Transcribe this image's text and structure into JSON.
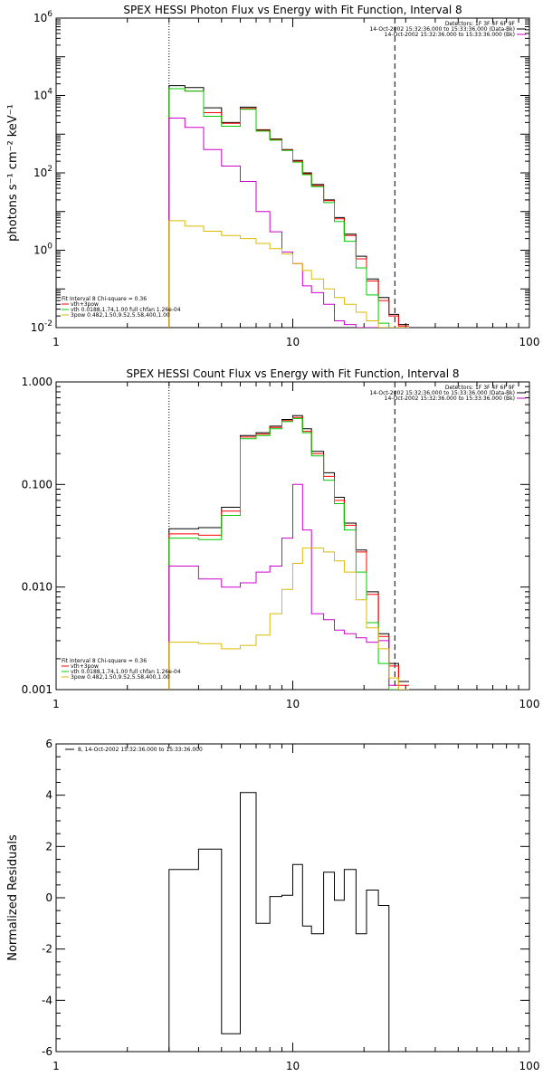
{
  "chart_data": [
    {
      "type": "line",
      "step": true,
      "title": "SPEX HESSI Photon Flux vs Energy with Fit Function, Interval 8",
      "xlabel": "",
      "ylabel": "photons s⁻¹ cm⁻² keV⁻¹",
      "xscale": "log",
      "yscale": "log",
      "xlim": [
        1,
        100
      ],
      "ylim": [
        0.01,
        1000000
      ],
      "x_ticks": [
        "1",
        "10",
        "100"
      ],
      "y_ticks": [
        {
          "v": 1000000,
          "t": "10",
          "e": "6"
        },
        {
          "v": 10000,
          "t": "10",
          "e": "4"
        },
        {
          "v": 100,
          "t": "10",
          "e": "2"
        },
        {
          "v": 1,
          "t": "10",
          "e": "0"
        },
        {
          "v": 0.01,
          "t": "10",
          "e": "-2"
        }
      ],
      "vlines": [
        {
          "x": 3.0,
          "style": "dotted"
        },
        {
          "x": 27.0,
          "style": "dashed"
        }
      ],
      "legend_top": [
        {
          "text": "Detectors: 1F 3F 4F 6F 9F",
          "color": ""
        },
        {
          "text": "14-Oct-2002 15:32:36.000 to 15:33:36.000 (Data-Bk)",
          "color": "#000000"
        },
        {
          "text": "14-Oct-2002 15:32:36.000 to 15:33:36.000 (Bk)",
          "color": "#cc00cc"
        }
      ],
      "legend_bottom": [
        {
          "text": "Fit Interval 8    Chi-square = 0.36",
          "color": ""
        },
        {
          "text": "vth+3pow",
          "color": "#ff0000"
        },
        {
          "text": "vth 0.0188,1.74,1.00  full chfan 1.26e-04",
          "color": "#00cc00"
        },
        {
          "text": "3pow 0.482,1.50,9.52,5.58,400,1.00",
          "color": "#ddbb00"
        }
      ],
      "edges": [
        3.0,
        3.5,
        4.2,
        5.0,
        6.0,
        7.0,
        8.0,
        9.0,
        10.0,
        11.0,
        12.0,
        13.5,
        15.0,
        16.5,
        18.5,
        20.5,
        23.0,
        25.5,
        28.0,
        31.0
      ],
      "series": [
        {
          "name": "",
          "color": "#000000",
          "values": [
            18000,
            16000,
            4800,
            2000,
            5000,
            1300,
            750,
            400,
            210,
            100,
            50,
            20,
            7,
            2.6,
            0.7,
            0.18,
            0.06,
            0.022,
            0.012
          ]
        },
        {
          "name": "",
          "color": "#ff0000",
          "values": [
            15000,
            13000,
            3600,
            1900,
            4600,
            1250,
            720,
            390,
            200,
            95,
            47,
            19,
            6.5,
            2.4,
            0.6,
            0.16,
            0.05,
            0.02,
            0.011
          ]
        },
        {
          "name": "",
          "color": "#00cc00",
          "values": [
            15000,
            13000,
            2900,
            1600,
            4400,
            1200,
            700,
            380,
            190,
            90,
            44,
            17,
            5.5,
            1.7,
            0.35,
            0.07,
            0.013,
            0.006,
            0.004
          ]
        },
        {
          "name": "",
          "color": "#cc00cc",
          "values": [
            2600,
            1500,
            400,
            150,
            60,
            10,
            3,
            0.9,
            0.45,
            0.12,
            0.08,
            0.04,
            0.015,
            0.012,
            0.01,
            0.009,
            0.008,
            0.007,
            0.006
          ]
        },
        {
          "name": "",
          "color": "#ddbb00",
          "values": [
            5.8,
            4.2,
            3.1,
            2.4,
            2.0,
            1.5,
            1.1,
            0.8,
            0.45,
            0.3,
            0.18,
            0.1,
            0.06,
            0.04,
            0.025,
            0.015,
            0.01,
            0.006,
            0.004
          ]
        }
      ]
    },
    {
      "type": "line",
      "step": true,
      "title": "SPEX HESSI Count Flux vs Energy with Fit Function, Interval 8",
      "xlabel": "",
      "ylabel": "",
      "xscale": "log",
      "yscale": "log",
      "xlim": [
        1,
        100
      ],
      "ylim": [
        0.001,
        1.0
      ],
      "x_ticks": [
        "1",
        "10",
        "100"
      ],
      "y_ticks": [
        {
          "v": 1.0,
          "t": "1.000"
        },
        {
          "v": 0.1,
          "t": "0.100"
        },
        {
          "v": 0.01,
          "t": "0.010"
        },
        {
          "v": 0.001,
          "t": "0.001"
        }
      ],
      "vlines": [
        {
          "x": 3.0,
          "style": "dotted"
        },
        {
          "x": 27.0,
          "style": "dashed"
        }
      ],
      "legend_top": [
        {
          "text": "Detectors: 1F 3F 4F 6F 9F",
          "color": ""
        },
        {
          "text": "14-Oct-2002 15:32:36.000 to 15:33:36.000 (Data-Bk)",
          "color": "#000000"
        },
        {
          "text": "14-Oct-2002 15:32:36.000 to 15:33:36.000 (Bk)",
          "color": "#cc00cc"
        }
      ],
      "legend_bottom": [
        {
          "text": "Fit Interval 8    Chi-square = 0.36",
          "color": ""
        },
        {
          "text": "vth+3pow",
          "color": "#ff0000"
        },
        {
          "text": "vth 0.0188,1.74,1.00  full chfan 1.26e-04",
          "color": "#00cc00"
        },
        {
          "text": "3pow 0.482,1.50,9.52,5.58,400,1.00",
          "color": "#ddbb00"
        }
      ],
      "edges": [
        3.0,
        4.0,
        5.0,
        6.0,
        7.0,
        8.0,
        9.0,
        10.0,
        11.0,
        12.0,
        13.5,
        15.0,
        16.5,
        18.5,
        20.5,
        23.0,
        25.5,
        28.0,
        31.0
      ],
      "series": [
        {
          "name": "",
          "color": "#000000",
          "values": [
            0.037,
            0.038,
            0.06,
            0.3,
            0.32,
            0.37,
            0.43,
            0.47,
            0.35,
            0.21,
            0.13,
            0.075,
            0.042,
            0.023,
            0.009,
            0.0035,
            0.0018,
            0.0012
          ]
        },
        {
          "name": "",
          "color": "#ff0000",
          "values": [
            0.033,
            0.032,
            0.055,
            0.29,
            0.31,
            0.36,
            0.42,
            0.45,
            0.33,
            0.2,
            0.12,
            0.07,
            0.04,
            0.022,
            0.0085,
            0.0033,
            0.0017,
            0.0011
          ]
        },
        {
          "name": "",
          "color": "#00cc00",
          "values": [
            0.03,
            0.029,
            0.05,
            0.28,
            0.3,
            0.35,
            0.41,
            0.44,
            0.32,
            0.19,
            0.11,
            0.065,
            0.036,
            0.014,
            0.0045,
            0.0018,
            0.001,
            0.001
          ]
        },
        {
          "name": "",
          "color": "#cc00cc",
          "values": [
            0.016,
            0.012,
            0.01,
            0.011,
            0.014,
            0.016,
            0.03,
            0.1,
            0.036,
            0.0055,
            0.0048,
            0.0038,
            0.0035,
            0.0032,
            0.0029,
            0.003,
            0.0011,
            0.001
          ]
        },
        {
          "name": "",
          "color": "#ddbb00",
          "values": [
            0.0029,
            0.0028,
            0.0025,
            0.0027,
            0.0034,
            0.0055,
            0.0095,
            0.017,
            0.024,
            0.024,
            0.022,
            0.018,
            0.014,
            0.0075,
            0.004,
            0.0025,
            0.0013,
            0.001
          ]
        }
      ]
    },
    {
      "type": "line",
      "step": true,
      "title": "",
      "xlabel": "",
      "ylabel": "Normalized Residuals",
      "xscale": "log",
      "yscale": "linear",
      "xlim": [
        1,
        100
      ],
      "ylim": [
        -6,
        6
      ],
      "x_ticks": [
        "1",
        "10",
        "100"
      ],
      "y_ticks": [
        {
          "v": 6,
          "t": "6"
        },
        {
          "v": 4,
          "t": "4"
        },
        {
          "v": 2,
          "t": "2"
        },
        {
          "v": 0,
          "t": "0"
        },
        {
          "v": -2,
          "t": "-2"
        },
        {
          "v": -4,
          "t": "-4"
        },
        {
          "v": -6,
          "t": "-6"
        }
      ],
      "vlines": [],
      "legend_top": [
        {
          "text": "8, 14-Oct-2002 15:32:36.000 to 15:33:36.000",
          "color": "#000000"
        }
      ],
      "legend_bottom": [],
      "edges": [
        3.0,
        4.0,
        5.0,
        6.0,
        7.0,
        8.0,
        9.0,
        10.0,
        11.0,
        12.0,
        13.5,
        15.0,
        16.5,
        18.5,
        20.5,
        23.0,
        25.5,
        28.0
      ],
      "series": [
        {
          "name": "",
          "color": "#000000",
          "values": [
            1.1,
            1.9,
            -5.3,
            4.1,
            -1.0,
            0.05,
            0.1,
            1.3,
            -1.1,
            -1.4,
            1.0,
            -0.1,
            1.1,
            -1.4,
            0.3,
            -0.3,
            -6.0
          ]
        }
      ]
    }
  ]
}
